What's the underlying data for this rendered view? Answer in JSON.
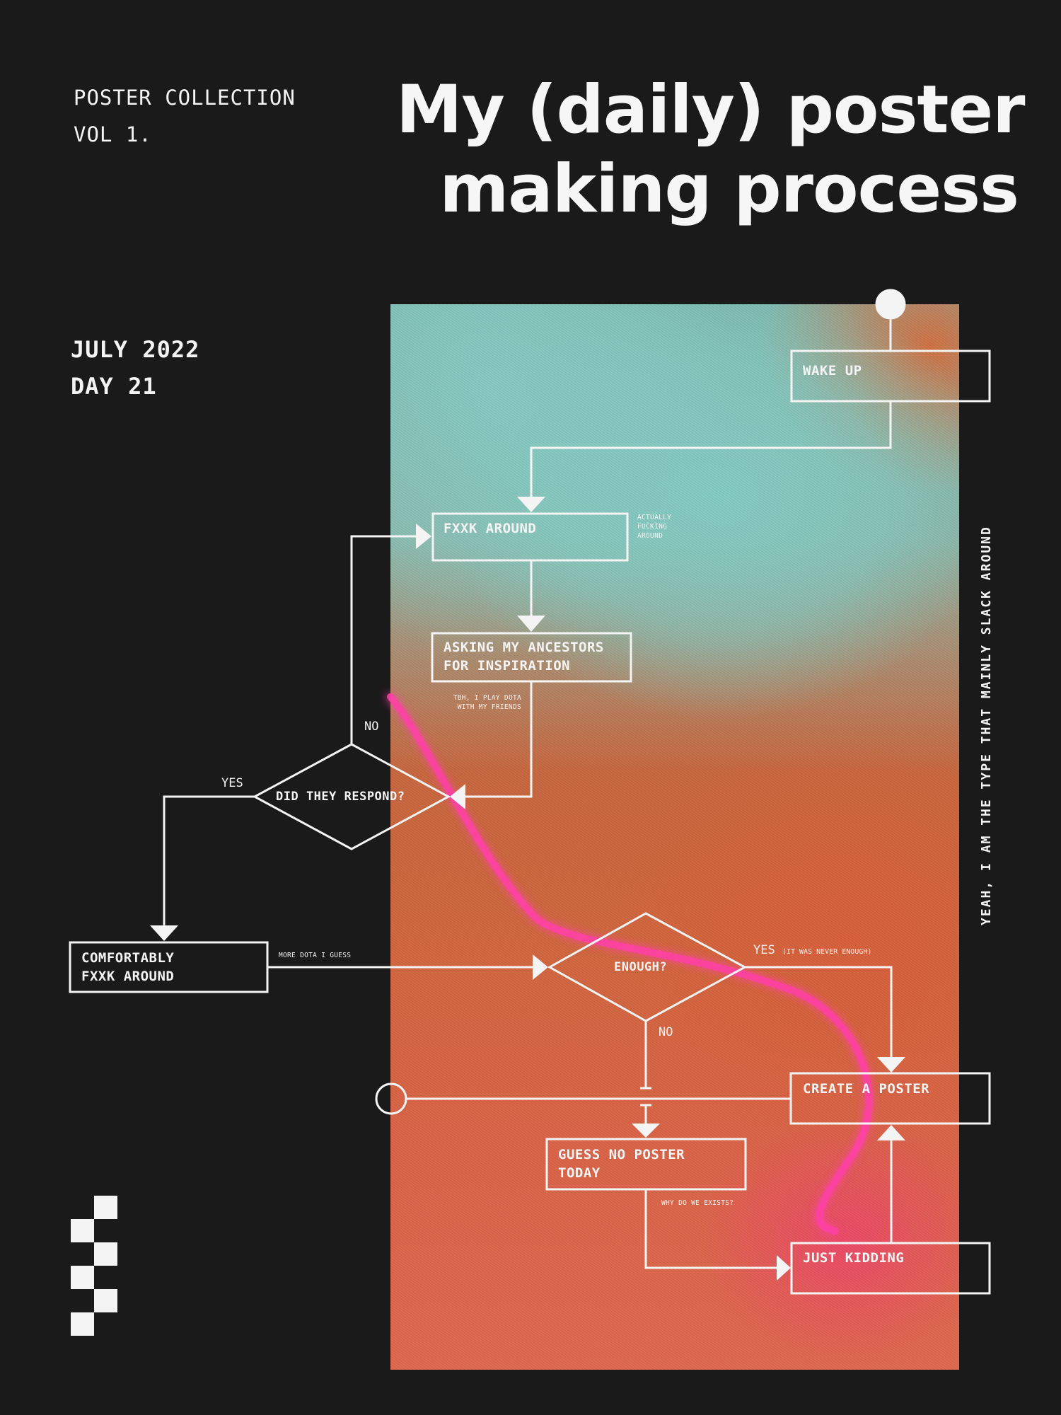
{
  "header": {
    "collection_line1": "POSTER COLLECTION",
    "collection_line2": "VOL 1.",
    "title_line1": "My (daily) poster",
    "title_line2": "making process"
  },
  "date": {
    "month_year": "JULY 2022",
    "day": "DAY 21"
  },
  "flowchart": {
    "wake_up": "WAKE UP",
    "fxxk_around": "FXXK AROUND",
    "fxxk_around_note_1": "ACTUALLY",
    "fxxk_around_note_2": "FUCKING",
    "fxxk_around_note_3": "AROUND",
    "ancestors_line1": "ASKING MY ANCESTORS",
    "ancestors_line2": "FOR INSPIRATION",
    "ancestors_note_1": "TBH, I PLAY DOTA",
    "ancestors_note_2": "WITH MY FRIENDS",
    "did_they_respond": "DID THEY RESPOND?",
    "no_label_1": "NO",
    "yes_label_1": "YES",
    "comfortably_line1": "COMFORTABLY",
    "comfortably_line2": "FXXK AROUND",
    "more_dota_note": "MORE DOTA I GUESS",
    "enough": "ENOUGH?",
    "yes_label_2": "YES",
    "yes_label_2_note": "(IT WAS NEVER ENOUGH)",
    "no_label_2": "NO",
    "create_poster": "CREATE A POSTER",
    "guess_no_poster_line1": "GUESS NO POSTER",
    "guess_no_poster_line2": "TODAY",
    "why_note": "WHY DO WE EXISTS?",
    "just_kidding": "JUST KIDDING"
  },
  "side_note": "YEAH, I AM THE TYPE THAT MAINLY SLACK AROUND",
  "colors": {
    "background": "#1b1a1a",
    "foreground": "#f4f4f4",
    "teal": "#84cec6",
    "orange": "#d2673f",
    "pink": "#ff3fa8"
  }
}
